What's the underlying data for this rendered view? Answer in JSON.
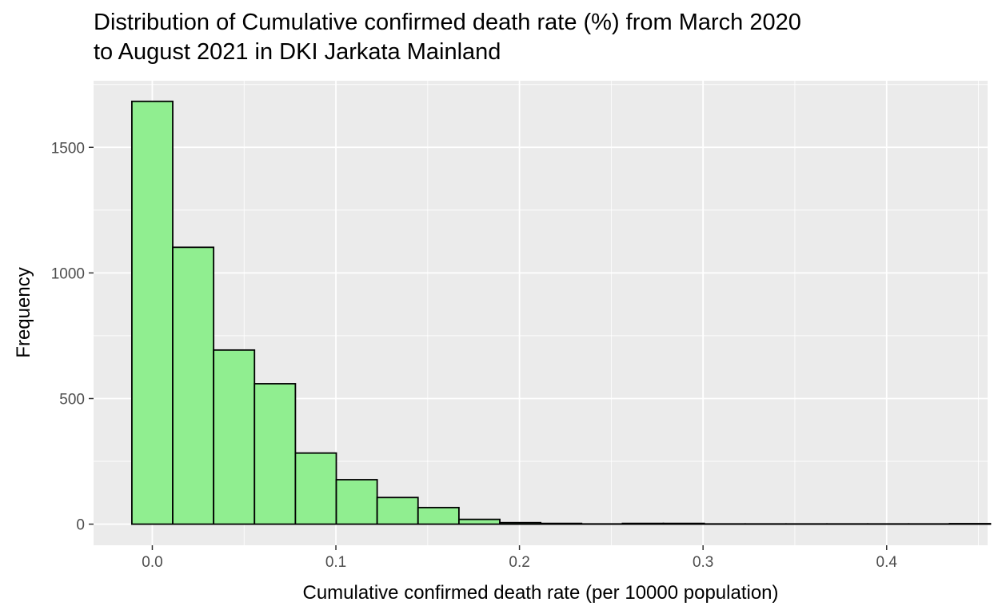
{
  "chart_data": {
    "type": "bar",
    "title_lines": [
      "Distribution of Cumulative confirmed death rate (%) from March 2020",
      "to August 2021 in DKI Jarkata Mainland"
    ],
    "xlabel": "Cumulative confirmed death rate (per 10000 population)",
    "ylabel": "Frequency",
    "xlim": [
      -0.032,
      0.455
    ],
    "ylim": [
      -84,
      1765
    ],
    "x_ticks": [
      0.0,
      0.1,
      0.2,
      0.3,
      0.4
    ],
    "x_tick_labels": [
      "0.0",
      "0.1",
      "0.2",
      "0.3",
      "0.4"
    ],
    "y_ticks": [
      0,
      500,
      1000,
      1500
    ],
    "y_tick_labels": [
      "0",
      "500",
      "1000",
      "1500"
    ],
    "bin_width": 0.02227,
    "bin_start": -0.01114,
    "values": [
      1683,
      1102,
      693,
      559,
      283,
      177,
      106,
      66,
      19,
      6,
      3,
      1,
      3,
      3,
      1,
      1,
      1,
      1,
      1,
      1,
      2
    ],
    "grid": true,
    "fill_color": "#90ee90",
    "edge_color": "#000000",
    "panel_color": "#ebebeb",
    "grid_color": "#ffffff"
  }
}
